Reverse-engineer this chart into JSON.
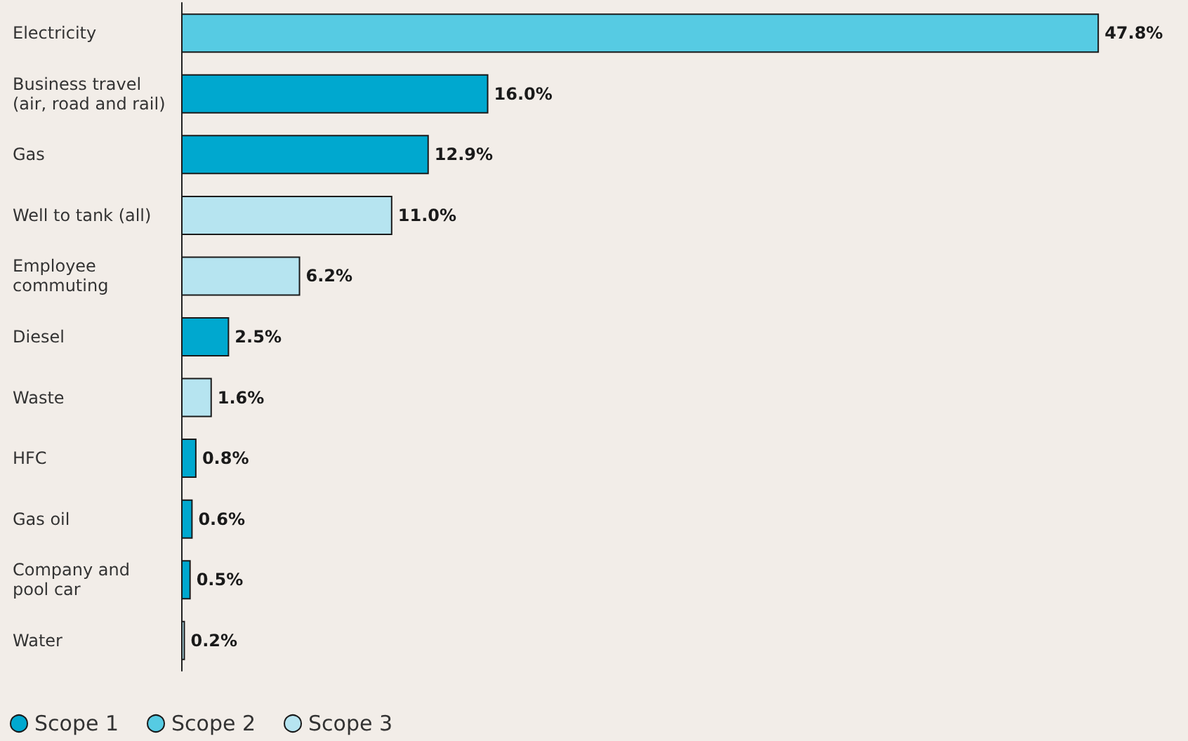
{
  "chart_data": {
    "type": "bar",
    "orientation": "horizontal",
    "categories": [
      "Electricity",
      "Business travel (air, road and rail)",
      "Gas",
      "Well to tank (all)",
      "Employee commuting",
      "Diesel",
      "Waste",
      "HFC",
      "Gas oil",
      "Company and pool car",
      "Water"
    ],
    "series": [
      {
        "name": "Scope 1",
        "color": "#00a8cf",
        "values": [
          null,
          16.0,
          12.9,
          null,
          null,
          2.5,
          null,
          0.8,
          0.6,
          0.5,
          null
        ],
        "value_labels": [
          null,
          "16.0%",
          "12.9%",
          null,
          null,
          "2.5%",
          null,
          "0.8%",
          "0.6%",
          "0.5%",
          null
        ]
      },
      {
        "name": "Scope 2",
        "color": "#56cbe3",
        "values": [
          47.8,
          null,
          null,
          null,
          null,
          null,
          null,
          null,
          null,
          null,
          null
        ],
        "value_labels": [
          "47.8%",
          null,
          null,
          null,
          null,
          null,
          null,
          null,
          null,
          null,
          null
        ]
      },
      {
        "name": "Scope 3",
        "color": "#b6e4f0",
        "values": [
          null,
          null,
          null,
          11.0,
          6.2,
          null,
          1.6,
          null,
          null,
          null,
          0.2
        ],
        "value_labels": [
          null,
          null,
          null,
          "11.0%",
          "6.2%",
          null,
          "1.6%",
          null,
          null,
          null,
          "0.2%"
        ]
      }
    ],
    "legend": "bottom left",
    "grid": false
  }
}
